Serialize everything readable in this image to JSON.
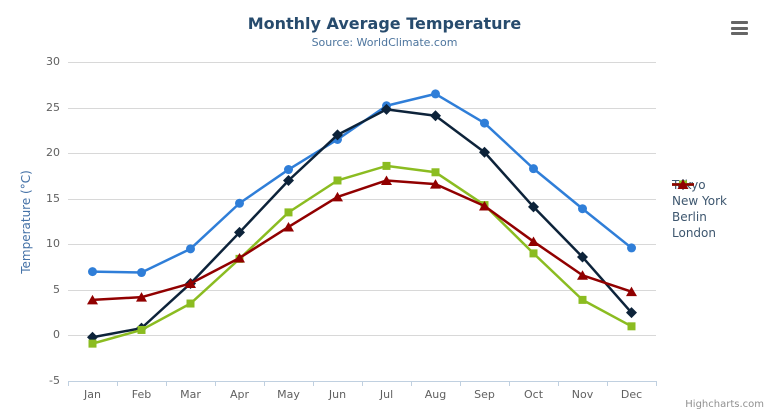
{
  "header": {
    "title": "Monthly Average Temperature",
    "subtitle": "Source: WorldClimate.com"
  },
  "controls": {
    "export_menu_icon": "hamburger-icon"
  },
  "credits": {
    "label": "Highcharts.com"
  },
  "palette": {
    "title_color": "#274b6d",
    "subtitle_color": "#4d759e",
    "axis_label_color": "#606060",
    "y_axis_title_color": "#4572A7",
    "legend_text_color": "#3E576F",
    "gridline_color": "#D8D8D8",
    "axis_line_color": "#C0D0E0",
    "credits_color": "#909090"
  },
  "chart_data": {
    "type": "line",
    "title": "Monthly Average Temperature",
    "subtitle": "Source: WorldClimate.com",
    "xlabel": "",
    "ylabel": "Temperature (°C)",
    "ylim": [
      -5,
      30
    ],
    "y_ticks": [
      -5,
      0,
      5,
      10,
      15,
      20,
      25,
      30
    ],
    "grid": true,
    "legend_position": "right",
    "categories": [
      "Jan",
      "Feb",
      "Mar",
      "Apr",
      "May",
      "Jun",
      "Jul",
      "Aug",
      "Sep",
      "Oct",
      "Nov",
      "Dec"
    ],
    "series": [
      {
        "name": "Tokyo",
        "color": "#2f7ed8",
        "marker": "circle",
        "values": [
          7.0,
          6.9,
          9.5,
          14.5,
          18.2,
          21.5,
          25.2,
          26.5,
          23.3,
          18.3,
          13.9,
          9.6
        ]
      },
      {
        "name": "New York",
        "color": "#0d233a",
        "marker": "diamond",
        "values": [
          -0.2,
          0.8,
          5.7,
          11.3,
          17.0,
          22.0,
          24.8,
          24.1,
          20.1,
          14.1,
          8.6,
          2.5
        ]
      },
      {
        "name": "Berlin",
        "color": "#8bbc21",
        "marker": "square",
        "values": [
          -0.9,
          0.6,
          3.5,
          8.4,
          13.5,
          17.0,
          18.6,
          17.9,
          14.3,
          9.0,
          3.9,
          1.0
        ]
      },
      {
        "name": "London",
        "color": "#910000",
        "marker": "triangle",
        "values": [
          3.9,
          4.2,
          5.7,
          8.5,
          11.9,
          15.2,
          17.0,
          16.6,
          14.2,
          10.3,
          6.6,
          4.8
        ]
      }
    ]
  }
}
